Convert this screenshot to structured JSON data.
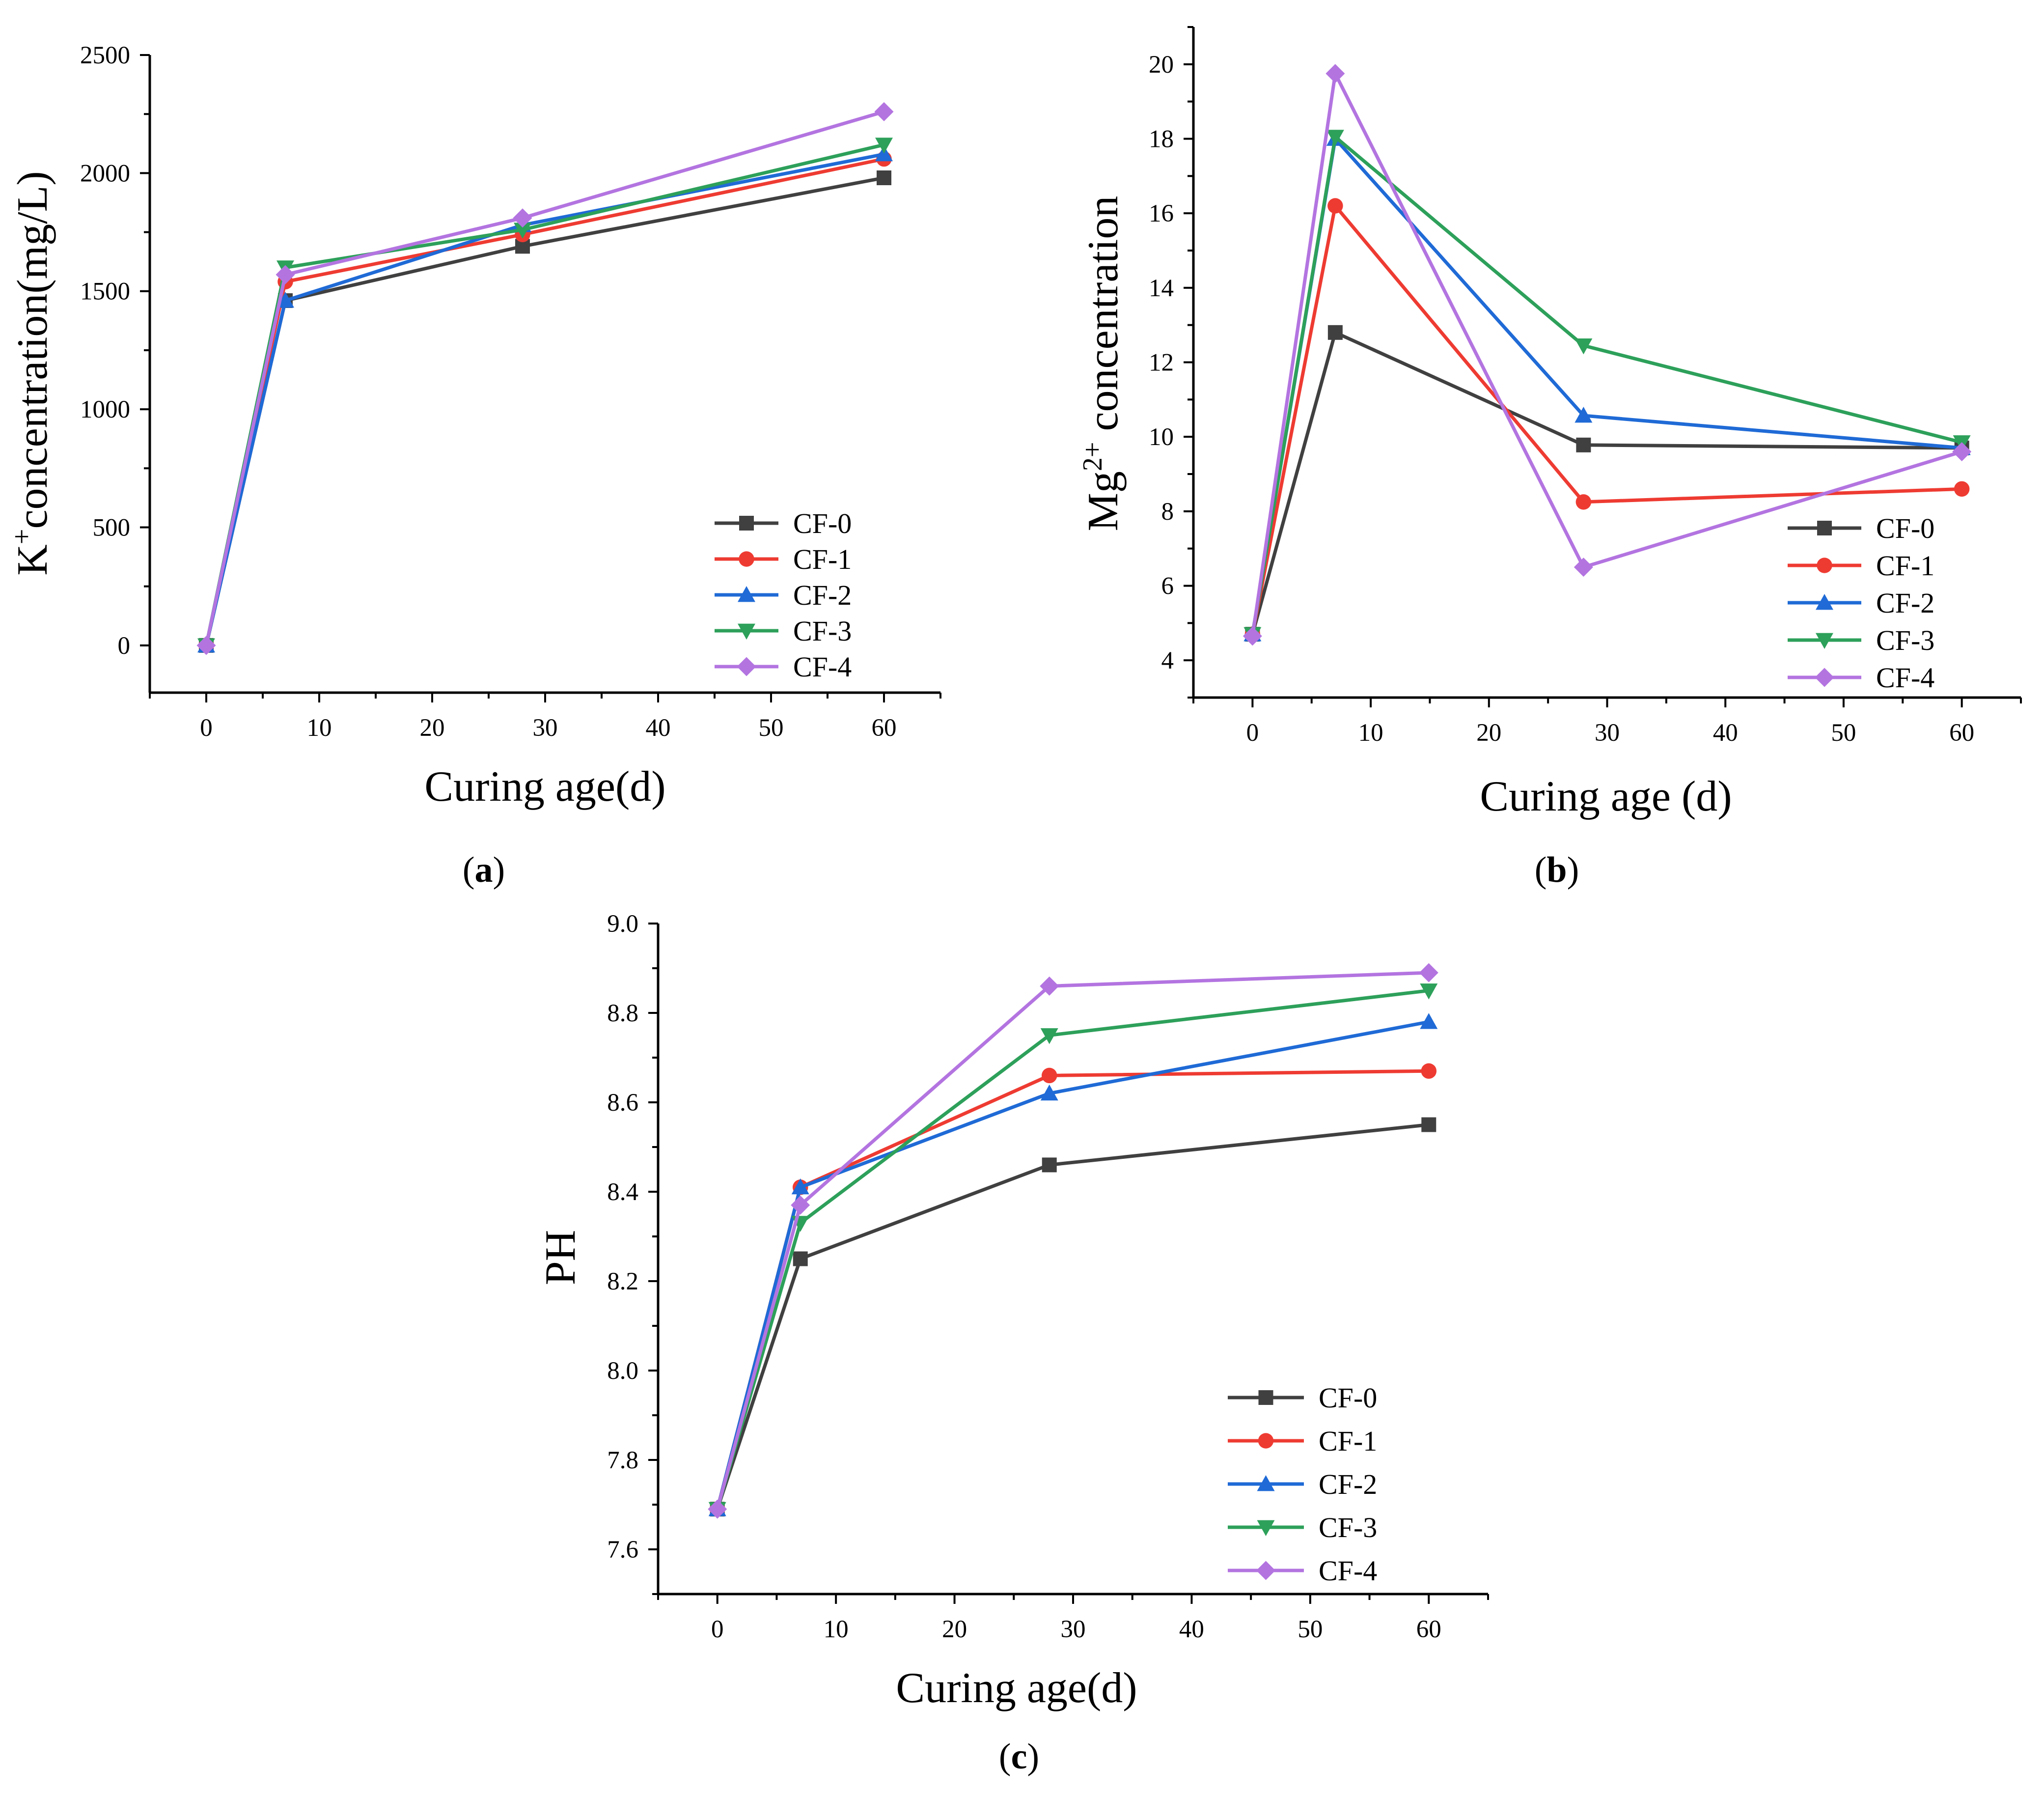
{
  "colors": {
    "CF-0": "#404040",
    "CF-1": "#ee3b32",
    "CF-2": "#1f6ad6",
    "CF-3": "#2da05a",
    "CF-4": "#b374e0"
  },
  "markers": {
    "CF-0": "square",
    "CF-1": "circle",
    "CF-2": "triangle-up",
    "CF-3": "triangle-down",
    "CF-4": "diamond"
  },
  "chart_data": [
    {
      "id": "a",
      "type": "line",
      "panel_label": "a",
      "xlabel": "Curing age(d)",
      "ylabel_parts": [
        "K",
        "+",
        "concentration(mg/L)"
      ],
      "xlim": [
        -5,
        65
      ],
      "ylim": [
        -200,
        2500
      ],
      "xticks": [
        0,
        10,
        20,
        30,
        40,
        50,
        60
      ],
      "yticks": [
        0,
        500,
        1000,
        1500,
        2000,
        2500
      ],
      "legend_position": "bottom-right",
      "x": [
        0,
        7,
        28,
        60
      ],
      "series": [
        {
          "name": "CF-0",
          "values": [
            0,
            1460,
            1690,
            1980
          ]
        },
        {
          "name": "CF-1",
          "values": [
            0,
            1540,
            1740,
            2060
          ]
        },
        {
          "name": "CF-2",
          "values": [
            0,
            1460,
            1780,
            2080
          ]
        },
        {
          "name": "CF-3",
          "values": [
            0,
            1600,
            1760,
            2120
          ]
        },
        {
          "name": "CF-4",
          "values": [
            0,
            1570,
            1810,
            2260
          ]
        }
      ]
    },
    {
      "id": "b",
      "type": "line",
      "panel_label": "b",
      "xlabel": "Curing age (d)",
      "ylabel_parts": [
        "Mg",
        "2+",
        " concentration"
      ],
      "xlim": [
        -5,
        65
      ],
      "ylim": [
        3,
        21
      ],
      "xticks": [
        0,
        10,
        20,
        30,
        40,
        50,
        60
      ],
      "yticks": [
        4,
        6,
        8,
        10,
        12,
        14,
        16,
        18,
        20
      ],
      "legend_position": "bottom-right",
      "x": [
        0,
        7,
        28,
        60
      ],
      "series": [
        {
          "name": "CF-0",
          "values": [
            4.7,
            12.8,
            9.78,
            9.7
          ]
        },
        {
          "name": "CF-1",
          "values": [
            4.7,
            16.2,
            8.25,
            8.6
          ]
        },
        {
          "name": "CF-2",
          "values": [
            4.7,
            18.0,
            10.57,
            9.7
          ]
        },
        {
          "name": "CF-3",
          "values": [
            4.7,
            18.05,
            12.45,
            9.85
          ]
        },
        {
          "name": "CF-4",
          "values": [
            4.65,
            19.75,
            6.5,
            9.6
          ]
        }
      ]
    },
    {
      "id": "c",
      "type": "line",
      "panel_label": "c",
      "xlabel": "Curing age(d)",
      "ylabel_parts": [
        "PH",
        "",
        ""
      ],
      "xlim": [
        -5,
        65
      ],
      "ylim": [
        7.5,
        9.0
      ],
      "xticks": [
        0,
        10,
        20,
        30,
        40,
        50,
        60
      ],
      "yticks": [
        7.6,
        7.8,
        8.0,
        8.2,
        8.4,
        8.6,
        8.8,
        9.0
      ],
      "legend_position": "bottom-right",
      "x": [
        0,
        7,
        28,
        60
      ],
      "series": [
        {
          "name": "CF-0",
          "values": [
            7.69,
            8.25,
            8.46,
            8.55
          ]
        },
        {
          "name": "CF-1",
          "values": [
            7.69,
            8.41,
            8.66,
            8.67
          ]
        },
        {
          "name": "CF-2",
          "values": [
            7.69,
            8.41,
            8.62,
            8.78
          ]
        },
        {
          "name": "CF-3",
          "values": [
            7.69,
            8.33,
            8.75,
            8.85
          ]
        },
        {
          "name": "CF-4",
          "values": [
            7.69,
            8.37,
            8.86,
            8.89
          ]
        }
      ]
    }
  ]
}
